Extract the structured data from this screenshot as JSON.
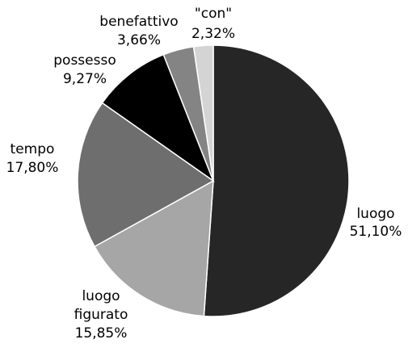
{
  "chart_data": {
    "type": "pie",
    "title": "",
    "start_angle_deg": 0,
    "direction": "clockwise",
    "legend": "none",
    "slices": [
      {
        "name": "luogo",
        "value": 51.1,
        "value_label": "51,10%",
        "color": "#262626"
      },
      {
        "name": "luogo figurato",
        "value": 15.85,
        "value_label": "15,85%",
        "color": "#a6a6a6"
      },
      {
        "name": "tempo",
        "value": 17.8,
        "value_label": "17,80%",
        "color": "#6e6e6e"
      },
      {
        "name": "possesso",
        "value": 9.27,
        "value_label": "9,27%",
        "color": "#000000"
      },
      {
        "name": "benefattivo",
        "value": 3.66,
        "value_label": "3,66%",
        "color": "#848484"
      },
      {
        "name": "\"con\"",
        "value": 2.32,
        "value_label": "2,32%",
        "color": "#d4d4d4"
      }
    ]
  }
}
